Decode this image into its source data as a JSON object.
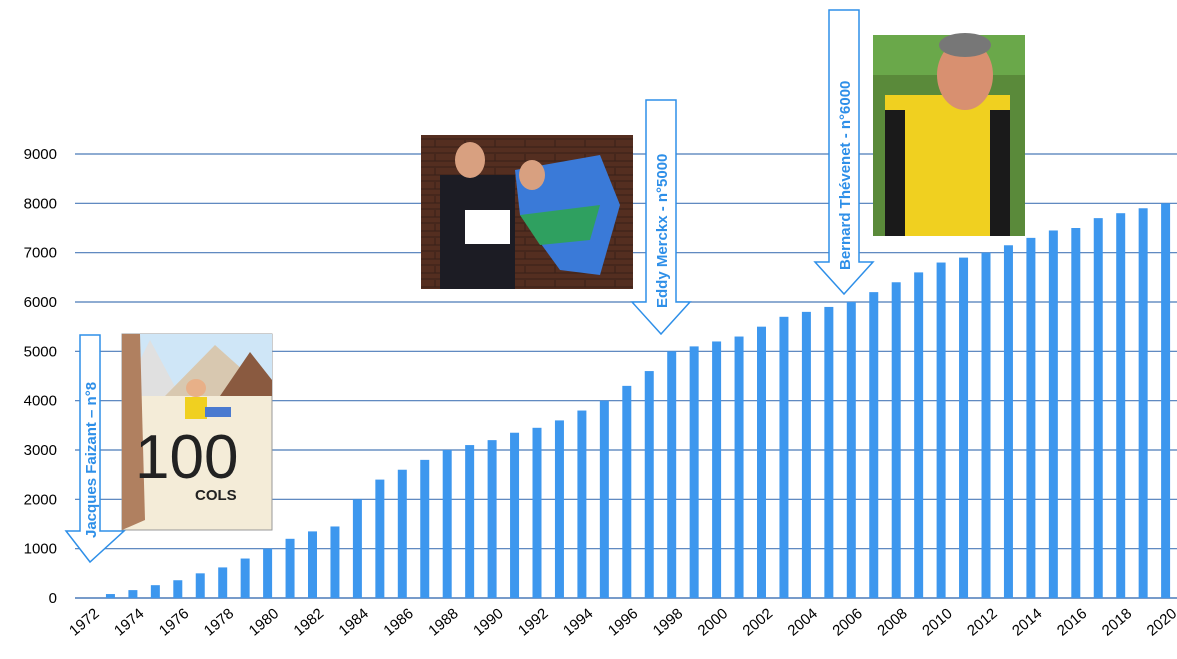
{
  "chart_data": {
    "type": "bar",
    "x": [
      1972,
      1973,
      1974,
      1975,
      1976,
      1977,
      1978,
      1979,
      1980,
      1981,
      1982,
      1983,
      1984,
      1985,
      1986,
      1987,
      1988,
      1989,
      1990,
      1991,
      1992,
      1993,
      1994,
      1995,
      1996,
      1997,
      1998,
      1999,
      2000,
      2001,
      2002,
      2003,
      2004,
      2005,
      2006,
      2007,
      2008,
      2009,
      2010,
      2011,
      2012,
      2013,
      2014,
      2015,
      2016,
      2017,
      2018,
      2019,
      2020
    ],
    "values": [
      0,
      80,
      160,
      260,
      360,
      500,
      620,
      800,
      1000,
      1200,
      1350,
      1450,
      2000,
      2400,
      2600,
      2800,
      3000,
      3100,
      3200,
      3350,
      3450,
      3600,
      3800,
      4000,
      4300,
      4600,
      5000,
      5100,
      5200,
      5300,
      5500,
      5700,
      5800,
      5900,
      6000,
      6200,
      6400,
      6600,
      6800,
      6900,
      7000,
      7150,
      7300,
      7450,
      7500,
      7700,
      7800,
      7900,
      8000
    ],
    "xticks": [
      "1972",
      "1974",
      "1976",
      "1978",
      "1980",
      "1982",
      "1984",
      "1986",
      "1988",
      "1990",
      "1992",
      "1994",
      "1996",
      "1998",
      "2000",
      "2002",
      "2004",
      "2006",
      "2008",
      "2010",
      "2012",
      "2014",
      "2016",
      "2018",
      "2020"
    ],
    "yticks": [
      "0",
      "1000",
      "2000",
      "3000",
      "4000",
      "5000",
      "6000",
      "7000",
      "8000",
      "9000"
    ],
    "ylim": [
      0,
      9000
    ],
    "grid": true,
    "bar_color": "#3d97ee",
    "grid_color": "#4a7ab8",
    "annotations": [
      {
        "label": "Jacques Faizant – n°8",
        "x": 1973,
        "image": "100 cols cartoon"
      },
      {
        "label": "Eddy Merckx - n°5000",
        "x": 1998,
        "image": "jersey presentation photo"
      },
      {
        "label": "Bernard Thévenet - n°6000",
        "x": 2006,
        "image": "cyclist portrait"
      }
    ]
  },
  "cartoon_text": "100",
  "cartoon_subtext": "COLS"
}
